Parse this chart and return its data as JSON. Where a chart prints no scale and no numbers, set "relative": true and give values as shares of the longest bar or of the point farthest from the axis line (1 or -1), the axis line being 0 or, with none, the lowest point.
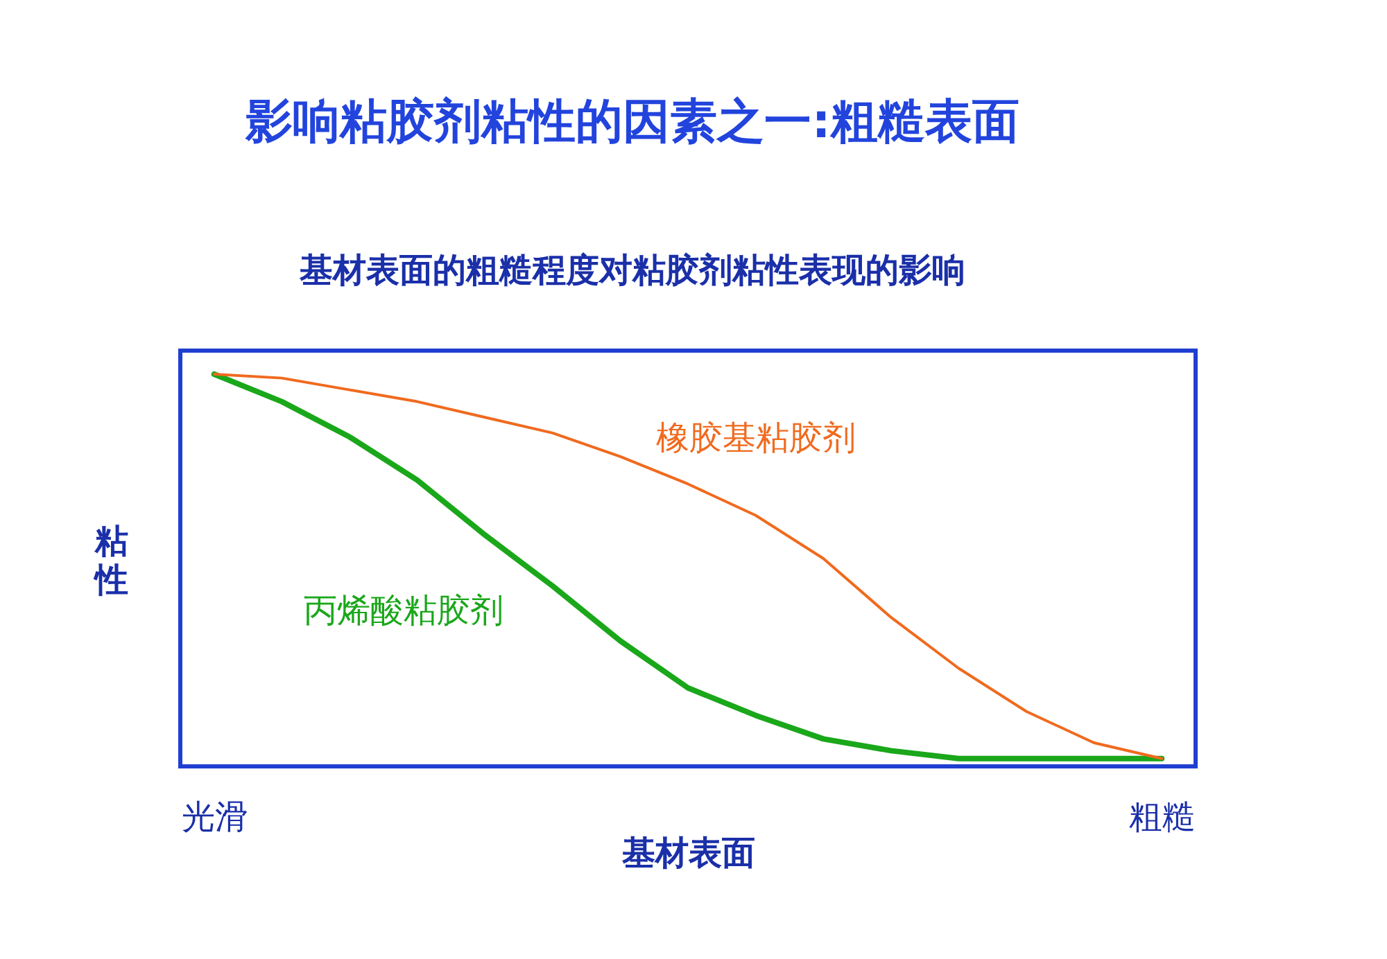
{
  "chart_data": {
    "type": "line",
    "title": "影响粘胶剂粘性的因素之一:粗糙表面",
    "subtitle": "基材表面的粗糙程度对粘胶剂粘性表现的影响",
    "xlabel": "基材表面",
    "ylabel": "粘性",
    "relative": true,
    "categories": [
      "光滑",
      null,
      null,
      null,
      null,
      null,
      null,
      null,
      null,
      null,
      null,
      null,
      null,
      null,
      "粗糙"
    ],
    "series": [
      {
        "name": "橡胶基粘胶剂",
        "color": "#f06a1e",
        "values": [
          1,
          0.99,
          0.96,
          0.93,
          0.89,
          0.85,
          0.79,
          0.72,
          0.64,
          0.53,
          0.38,
          0.25,
          0.14,
          0.06,
          0.02
        ]
      },
      {
        "name": "丙烯酸粘胶剂",
        "color": "#1aa71a",
        "values": [
          1,
          0.93,
          0.84,
          0.73,
          0.59,
          0.46,
          0.32,
          0.2,
          0.13,
          0.07,
          0.04,
          0.02,
          0.02,
          0.02,
          0.02
        ]
      }
    ],
    "legend": false,
    "grid": false
  }
}
